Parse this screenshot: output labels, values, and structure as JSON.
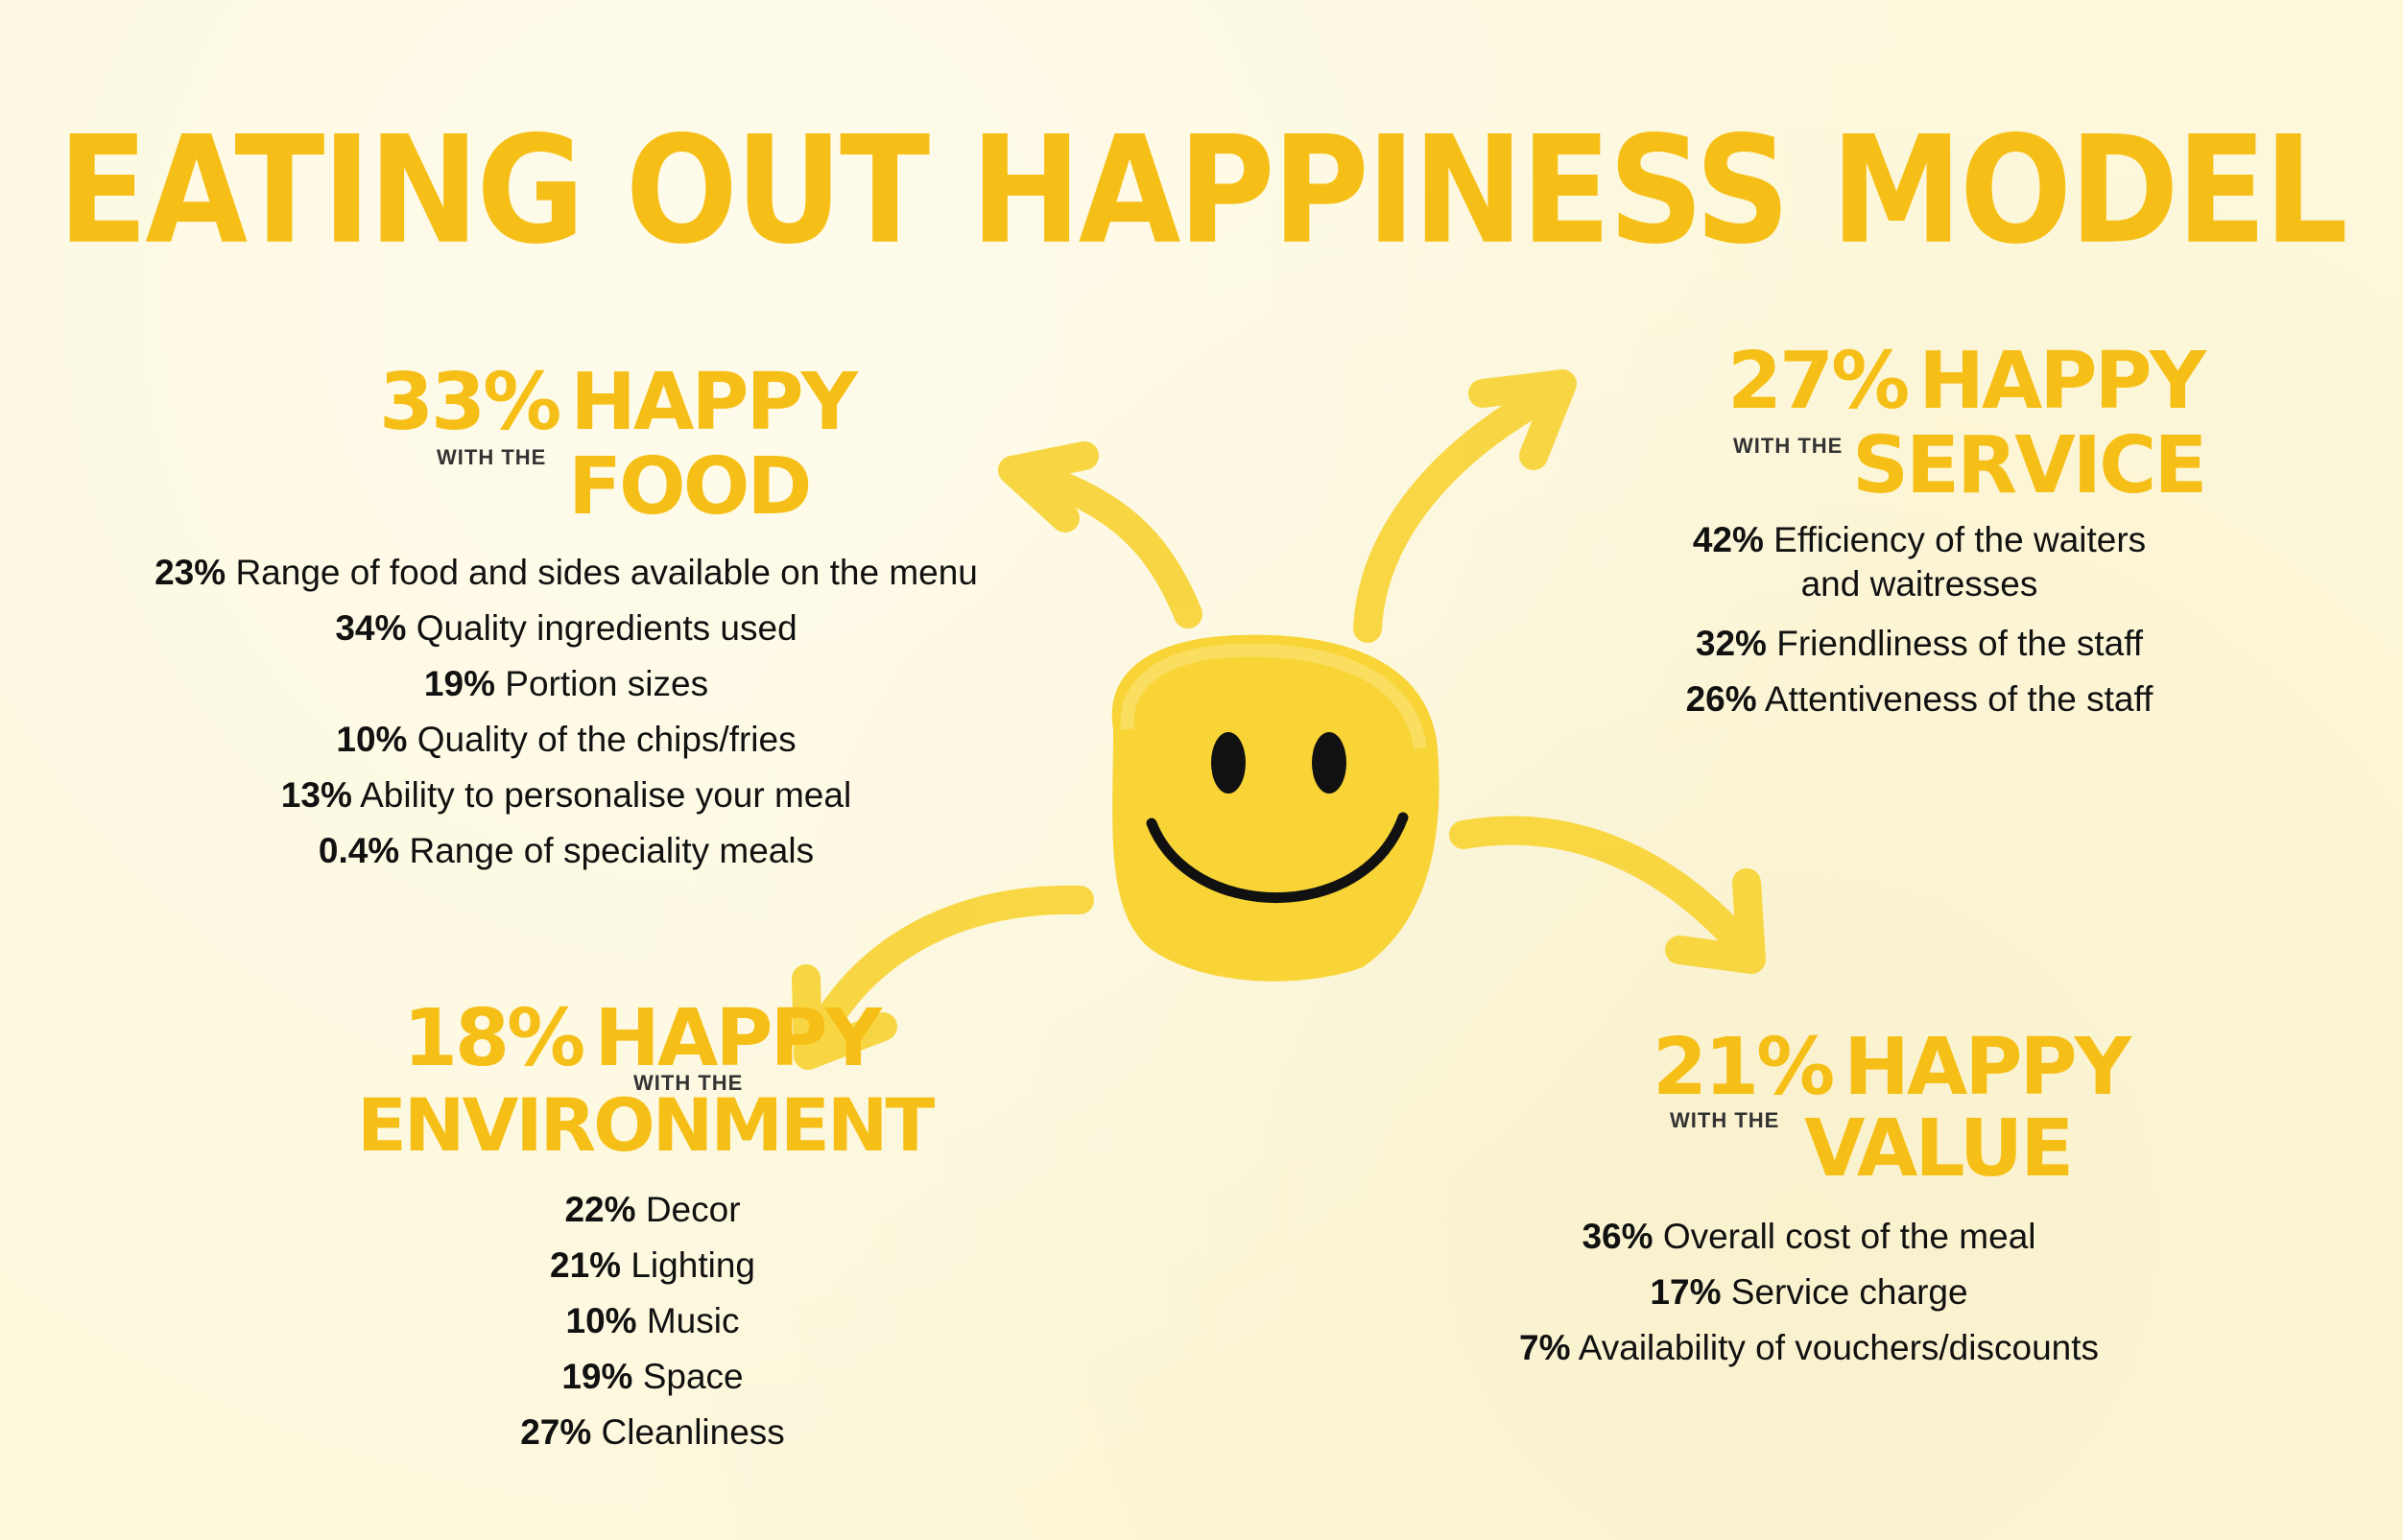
{
  "title": "EATING OUT HAPPINESS MODEL",
  "colors": {
    "accent": "#f6bf17",
    "face": "#f8d436",
    "text": "#111111",
    "background": "#fdf8dc"
  },
  "groups": {
    "food": {
      "percent": "33%",
      "happy": "HAPPY",
      "with": "WITH THE",
      "category": "FOOD",
      "items": [
        {
          "pct": "23%",
          "label": "Range of food and sides available on the menu"
        },
        {
          "pct": "34%",
          "label": "Quality ingredients used"
        },
        {
          "pct": "19%",
          "label": "Portion sizes"
        },
        {
          "pct": "10%",
          "label": "Quality of the chips/fries"
        },
        {
          "pct": "13%",
          "label": "Ability to personalise your meal"
        },
        {
          "pct": "0.4%",
          "label": "Range of speciality meals"
        }
      ]
    },
    "service": {
      "percent": "27%",
      "happy": "HAPPY",
      "with": "WITH THE",
      "category": "SERVICE",
      "items": [
        {
          "pct": "42%",
          "label": "Efficiency of the waiters",
          "label2": "and waitresses"
        },
        {
          "pct": "32%",
          "label": "Friendliness of the staff"
        },
        {
          "pct": "26%",
          "label": "Attentiveness of the staff"
        }
      ]
    },
    "environment": {
      "percent": "18%",
      "happy": "HAPPY",
      "with": "WITH THE",
      "category": "ENVIRONMENT",
      "items": [
        {
          "pct": "22%",
          "label": "Decor"
        },
        {
          "pct": "21%",
          "label": "Lighting"
        },
        {
          "pct": "10%",
          "label": "Music"
        },
        {
          "pct": "19%",
          "label": "Space"
        },
        {
          "pct": "27%",
          "label": "Cleanliness"
        }
      ]
    },
    "value": {
      "percent": "21%",
      "happy": "HAPPY",
      "with": "WITH THE",
      "category": "VALUE",
      "items": [
        {
          "pct": "36%",
          "label": "Overall cost of the meal"
        },
        {
          "pct": "17%",
          "label": "Service charge"
        },
        {
          "pct": "7%",
          "label": "Availability of vouchers/discounts"
        }
      ]
    }
  }
}
